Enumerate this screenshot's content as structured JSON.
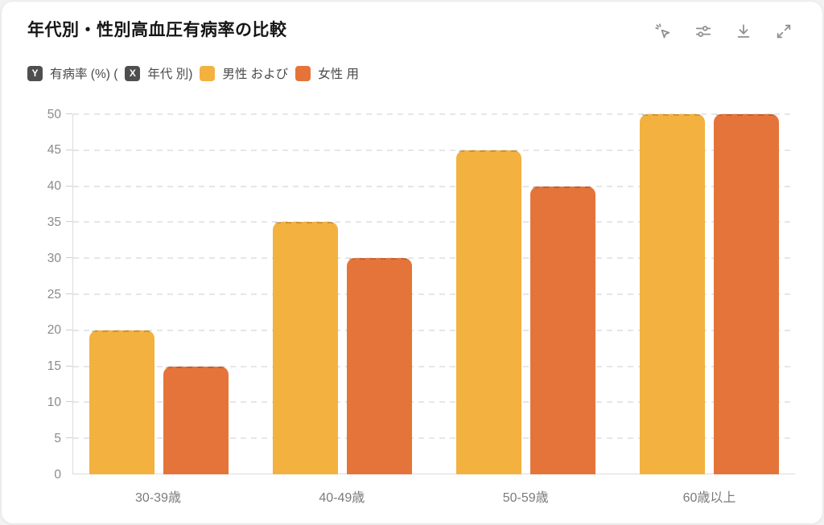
{
  "header": {
    "title": "年代別・性別高血圧有病率の比較"
  },
  "toolbar": {
    "icons": [
      "interact-cursor-icon",
      "sliders-icon",
      "download-icon",
      "expand-icon"
    ]
  },
  "legend": {
    "y_badge": "Y",
    "y_text": "有病率 (%) (",
    "x_badge": "X",
    "x_text": "年代 別)",
    "male_label": "男性 および",
    "female_label": "女性 用"
  },
  "colors": {
    "male": "#F3B13F",
    "female": "#E5743A",
    "grid": "#e6e6e6",
    "axis": "#dcdcdc",
    "tick_text": "#8a8a8a",
    "badge_bg": "#4f4f4f"
  },
  "chart_data": {
    "type": "bar",
    "title": "年代別・性別高血圧有病率の比較",
    "categories": [
      "30-39歳",
      "40-49歳",
      "50-59歳",
      "60歳以上"
    ],
    "series": [
      {
        "name": "男性",
        "color": "#F3B13F",
        "values": [
          20,
          35,
          45,
          50
        ]
      },
      {
        "name": "女性",
        "color": "#E5743A",
        "values": [
          15,
          30,
          40,
          50
        ]
      }
    ],
    "xlabel": "年代",
    "ylabel": "有病率 (%)",
    "ylim": [
      0,
      50
    ],
    "ytick_step": 5,
    "grid": true,
    "grid_style": "dashed",
    "legend_position": "top"
  }
}
